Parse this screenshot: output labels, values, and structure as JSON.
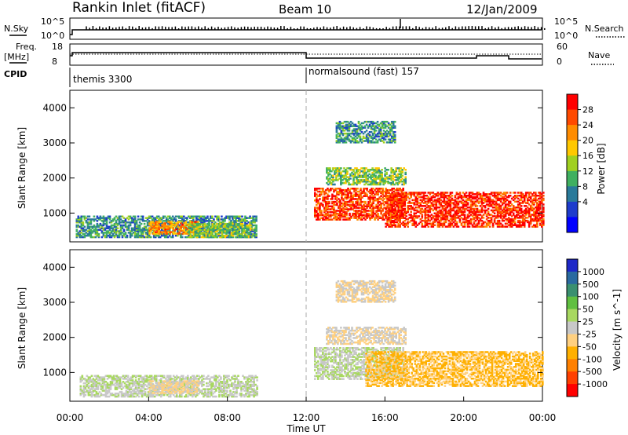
{
  "header": {
    "station": "Rankin Inlet (fitACF)",
    "beam": "Beam 10",
    "date": "12/Jan/2009"
  },
  "noise_panel": {
    "left_label": "N.Sky",
    "right_label": "N.Search",
    "left_ticks": [
      "10^5",
      "10^0"
    ],
    "right_ticks": [
      "10^5",
      "10^0"
    ]
  },
  "freq_panel": {
    "left_label_1": "Freq.",
    "left_label_2": "[MHz]",
    "right_label": "Nave",
    "left_ticks": [
      "18",
      "8"
    ],
    "right_ticks": [
      "60",
      "0"
    ]
  },
  "cpid_panel": {
    "label": "CPID",
    "modes": [
      {
        "name": "themis 3300",
        "start": "00:00",
        "end": "12:00"
      },
      {
        "name": "normalsound (fast) 157",
        "start": "12:00",
        "end": "24:00"
      }
    ]
  },
  "power_colorbar": {
    "label": "Power [dB]",
    "ticks": [
      "28",
      "24",
      "20",
      "16",
      "12",
      "8",
      "4"
    ],
    "colors": [
      "#ff0000",
      "#ff4a00",
      "#ff8c00",
      "#ffc800",
      "#a0d020",
      "#40b060",
      "#2a7a9a",
      "#1e3ccc",
      "#0000ff"
    ]
  },
  "velocity_colorbar": {
    "label": "Velocity [m s^-1]",
    "ticks": [
      "1000",
      "500",
      "100",
      "50",
      "25",
      "-25",
      "-50",
      "-100",
      "-500",
      "-1000"
    ],
    "colors": [
      "#1e28c8",
      "#2a6aa0",
      "#3a9070",
      "#60c040",
      "#a8d860",
      "#c8c8c8",
      "#ffd080",
      "#ffb000",
      "#ff8000",
      "#ff4000",
      "#ff0000"
    ]
  },
  "y_axis": {
    "label": "Slant Range [km]",
    "ticks": [
      "1000",
      "2000",
      "3000",
      "4000"
    ]
  },
  "x_axis": {
    "label": "Time UT",
    "ticks": [
      "00:00",
      "04:00",
      "08:00",
      "12:00",
      "16:00",
      "20:00",
      "00:00"
    ]
  },
  "chart_data": [
    {
      "type": "heatmap",
      "title": "Power",
      "x_range_hours": [
        0,
        24
      ],
      "y_range_km": [
        180,
        4500
      ],
      "colorbar_range_db": [
        0,
        30
      ],
      "regions": [
        {
          "t": [
            0.3,
            9.5
          ],
          "km": [
            300,
            900
          ],
          "value_db": 10
        },
        {
          "t": [
            4.0,
            6.5
          ],
          "km": [
            400,
            750
          ],
          "value_db": 22
        },
        {
          "t": [
            6.0,
            9.2
          ],
          "km": [
            300,
            700
          ],
          "value_db": 14
        },
        {
          "t": [
            12.4,
            17.0
          ],
          "km": [
            800,
            1700
          ],
          "value_db": 26
        },
        {
          "t": [
            16.0,
            24.0
          ],
          "km": [
            600,
            1600
          ],
          "value_db": 27
        },
        {
          "t": [
            13.0,
            17.0
          ],
          "km": [
            1800,
            2300
          ],
          "value_db": 14
        },
        {
          "t": [
            13.5,
            16.5
          ],
          "km": [
            3000,
            3600
          ],
          "value_db": 10
        }
      ]
    },
    {
      "type": "heatmap",
      "title": "Velocity",
      "x_range_hours": [
        0,
        24
      ],
      "y_range_km": [
        180,
        4500
      ],
      "colorbar_range_ms": [
        -1000,
        1000
      ],
      "regions": [
        {
          "t": [
            0.5,
            9.5
          ],
          "km": [
            300,
            900
          ],
          "value_ms": 60
        },
        {
          "t": [
            4.0,
            6.5
          ],
          "km": [
            400,
            750
          ],
          "value_ms": -120
        },
        {
          "t": [
            12.4,
            17.0
          ],
          "km": [
            800,
            1700
          ],
          "value_ms": 60
        },
        {
          "t": [
            15.0,
            24.0
          ],
          "km": [
            600,
            1600
          ],
          "value_ms": -300
        },
        {
          "t": [
            13.0,
            17.0
          ],
          "km": [
            1800,
            2300
          ],
          "value_ms": -80
        },
        {
          "t": [
            13.5,
            16.5
          ],
          "km": [
            3000,
            3600
          ],
          "value_ms": -100
        }
      ]
    }
  ]
}
